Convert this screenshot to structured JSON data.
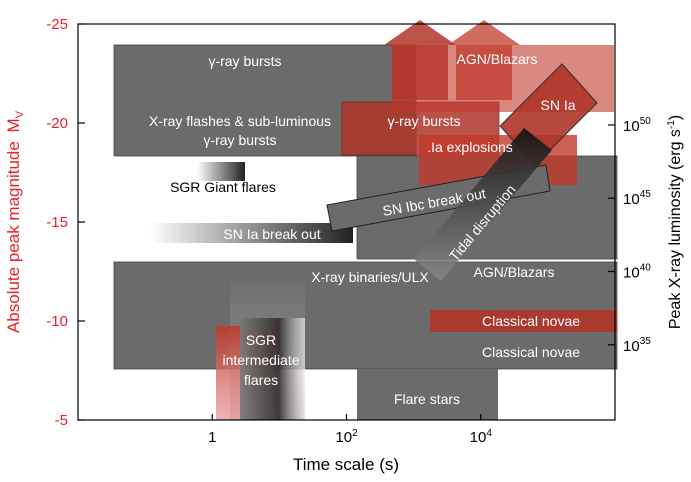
{
  "chart_data": {
    "type": "area",
    "xlabel": "Time scale (s)",
    "ylabel_left": "Absolute peak magnitude",
    "ylabel_left_sub": "V",
    "ylabel_left_prefix": "M",
    "ylabel_right": "Peak X-ray luminosity (erg s",
    "ylabel_right_sup": "-1",
    "ylabel_right_close": ")",
    "x_scale": "log",
    "xlim": [
      0.01,
      1000000
    ],
    "ylim_mag": [
      -25,
      -5
    ],
    "x_ticks": [
      {
        "value": 1,
        "label": "1"
      },
      {
        "value": 100,
        "label": "10",
        "sup": "2"
      },
      {
        "value": 10000,
        "label": "10",
        "sup": "4"
      }
    ],
    "y_ticks_left": [
      {
        "value": -25,
        "label": "-25"
      },
      {
        "value": -20,
        "label": "-20"
      },
      {
        "value": -15,
        "label": "-15"
      },
      {
        "value": -10,
        "label": "-10"
      },
      {
        "value": -5,
        "label": "-5"
      }
    ],
    "y_ticks_right": [
      {
        "mag": -19.9,
        "label": "10",
        "sup": "50"
      },
      {
        "mag": -16.2,
        "label": "10",
        "sup": "45"
      },
      {
        "mag": -12.5,
        "label": "10",
        "sup": "40"
      },
      {
        "mag": -8.8,
        "label": "10",
        "sup": "35"
      }
    ],
    "colors": {
      "optical": "#c0392b",
      "xray": "#6b6b6b",
      "left_axis": "#e8202a"
    },
    "series": [
      {
        "name": "γ-ray bursts",
        "band": "x-ray",
        "x": [
          0.05,
          1000
        ],
        "mag": [
          -23.3,
          -17.4
        ]
      },
      {
        "name": "X-ray flashes & sub-luminous γ-ray bursts",
        "band": "x-ray",
        "x": [
          0.05,
          1000
        ],
        "mag": [
          -23.3,
          -17.4
        ]
      },
      {
        "name": "AGN/Blazars",
        "band": "optical",
        "x": [
          500,
          1000000
        ],
        "mag": [
          -24.2,
          -19.7
        ]
      },
      {
        "name": "SN Ia",
        "band": "optical",
        "x": [
          20000,
          500000
        ],
        "mag": [
          -22.4,
          -16.9
        ]
      },
      {
        "name": "γ-ray bursts",
        "band": "optical",
        "x": [
          70,
          5000
        ],
        "mag": [
          -20.0,
          -17.4
        ]
      },
      {
        "name": ".Ia explosions",
        "band": "optical",
        "x": [
          600,
          70000
        ],
        "mag": [
          -18.7,
          -16.2
        ]
      },
      {
        "name": "SGR Giant flares",
        "band": "x-ray",
        "x": [
          0.3,
          2.4
        ],
        "mag": [
          -17.0,
          -16.2
        ]
      },
      {
        "name": "SN Ibc break out",
        "band": "x-ray",
        "x": [
          150,
          40000
        ],
        "mag": [
          -16.0,
          -14.7
        ]
      },
      {
        "name": "Tidal disruption",
        "band": "x-ray",
        "x": [
          5000,
          50000
        ],
        "mag": [
          -17.0,
          -12.5
        ]
      },
      {
        "name": "SN Ia break out",
        "band": "x-ray",
        "x": [
          0.05,
          60
        ],
        "mag": [
          -14.0,
          -13.2
        ]
      },
      {
        "name": "AGN/Blazars",
        "band": "x-ray",
        "x": [
          100,
          1000000
        ],
        "mag": [
          -17.4,
          -12.2
        ]
      },
      {
        "name": "X-ray binaries/ULX",
        "band": "x-ray",
        "x": [
          0.05,
          1000000
        ],
        "mag": [
          -12.3,
          -7.4
        ]
      },
      {
        "name": "SGR intermediate flares",
        "band": "x-ray",
        "x": [
          0.8,
          30
        ],
        "mag": [
          -11.0,
          -5.0
        ]
      },
      {
        "name": "Classical novae",
        "band": "optical",
        "x": [
          1000,
          1000000
        ],
        "mag": [
          -10.0,
          -9.0
        ]
      },
      {
        "name": "Classical novae",
        "band": "x-ray",
        "x": [
          1000,
          1000000
        ],
        "mag": [
          -8.6,
          -7.4
        ]
      },
      {
        "name": "Flare stars",
        "band": "x-ray",
        "x": [
          100,
          10000
        ],
        "mag": [
          -7.4,
          -5.0
        ]
      }
    ]
  }
}
